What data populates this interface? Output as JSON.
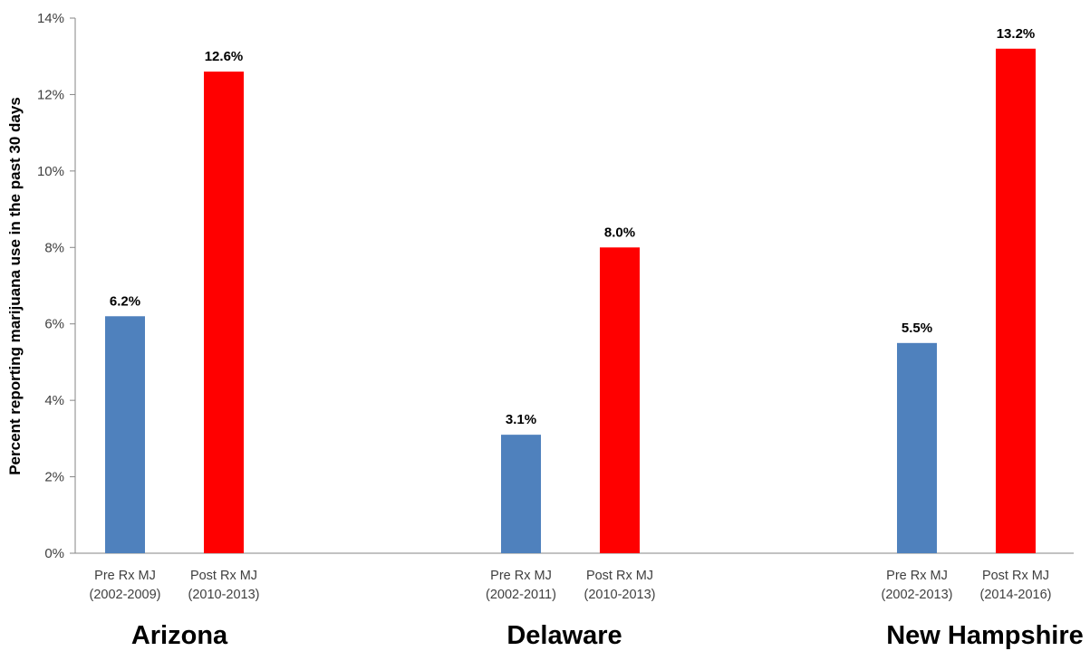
{
  "chart_data": {
    "type": "bar",
    "ylabel": "Percent reporting marijuana use in the past 30 days",
    "ylim": [
      0,
      14
    ],
    "yticks": [
      "0%",
      "2%",
      "4%",
      "6%",
      "8%",
      "10%",
      "12%",
      "14%"
    ],
    "grid": false,
    "legend": "none",
    "colors": {
      "pre": "#4F81BD",
      "post": "#FF0000"
    },
    "groups": [
      {
        "name": "Arizona",
        "bars": [
          {
            "label": [
              "Pre Rx MJ",
              "(2002-2009)"
            ],
            "value": 6.2,
            "value_label": "6.2%",
            "kind": "pre"
          },
          {
            "label": [
              "Post Rx MJ",
              "(2010-2013)"
            ],
            "value": 12.6,
            "value_label": "12.6%",
            "kind": "post"
          }
        ]
      },
      {
        "name": "Delaware",
        "bars": [
          {
            "label": [
              "Pre Rx MJ",
              "(2002-2011)"
            ],
            "value": 3.1,
            "value_label": "3.1%",
            "kind": "pre"
          },
          {
            "label": [
              "Post Rx MJ",
              "(2010-2013)"
            ],
            "value": 8.0,
            "value_label": "8.0%",
            "kind": "post"
          }
        ]
      },
      {
        "name": "New Hampshire",
        "bars": [
          {
            "label": [
              "Pre Rx MJ",
              "(2002-2013)"
            ],
            "value": 5.5,
            "value_label": "5.5%",
            "kind": "pre"
          },
          {
            "label": [
              "Post Rx MJ",
              "(2014-2016)"
            ],
            "value": 13.2,
            "value_label": "13.2%",
            "kind": "post"
          }
        ]
      }
    ]
  }
}
